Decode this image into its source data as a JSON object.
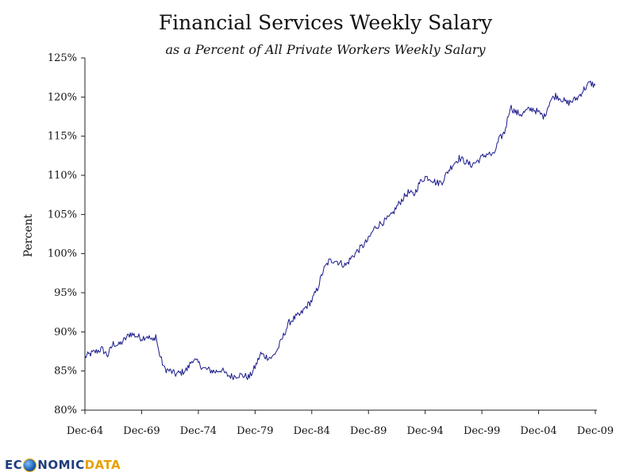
{
  "chart_data": {
    "type": "line",
    "title": "Financial Services Weekly Salary",
    "subtitle": "as a Percent of All Private Workers Weekly Salary",
    "ylabel": "Percent",
    "xlabel": "",
    "ylim": [
      80,
      125
    ],
    "yticks": [
      "80%",
      "85%",
      "90%",
      "95%",
      "100%",
      "105%",
      "110%",
      "115%",
      "120%",
      "125%"
    ],
    "xticks": [
      "Dec-64",
      "Dec-69",
      "Dec-74",
      "Dec-79",
      "Dec-84",
      "Dec-89",
      "Dec-94",
      "Dec-99",
      "Dec-04",
      "Dec-09"
    ],
    "xlim": [
      "1964-12",
      "2009-12"
    ],
    "line_color": "#1a1a8c",
    "grid": false,
    "legend": "none",
    "series": [
      {
        "x": [
          "1964-12",
          "1965-06",
          "1965-12",
          "1966-06",
          "1966-12",
          "1967-06",
          "1967-12",
          "1968-06",
          "1968-12",
          "1969-06",
          "1969-12",
          "1970-06",
          "1970-12",
          "1971-03",
          "1971-06",
          "1971-12",
          "1972-06",
          "1972-12",
          "1973-06",
          "1973-12",
          "1974-06",
          "1974-12",
          "1975-06",
          "1975-12",
          "1976-06",
          "1976-12",
          "1977-06",
          "1977-12",
          "1978-06",
          "1978-12",
          "1979-06",
          "1979-12",
          "1980-06",
          "1980-12",
          "1981-06",
          "1981-12",
          "1982-06",
          "1982-12",
          "1983-06",
          "1983-12",
          "1984-06",
          "1984-12",
          "1985-06",
          "1985-12",
          "1986-06",
          "1986-12",
          "1987-06",
          "1987-12",
          "1988-06",
          "1988-12",
          "1989-06",
          "1989-12",
          "1990-06",
          "1990-12",
          "1991-06",
          "1991-12",
          "1992-06",
          "1992-12",
          "1993-06",
          "1993-12",
          "1994-06",
          "1994-12",
          "1995-06",
          "1995-12",
          "1996-06",
          "1996-12",
          "1997-06",
          "1997-12",
          "1998-06",
          "1998-12",
          "1999-06",
          "1999-12",
          "2000-06",
          "2000-12",
          "2001-06",
          "2001-12",
          "2002-06",
          "2002-12",
          "2003-06",
          "2003-12",
          "2004-06",
          "2004-12",
          "2005-06",
          "2005-12",
          "2006-06",
          "2006-12",
          "2007-06",
          "2007-12",
          "2008-06",
          "2008-12",
          "2009-06",
          "2009-12"
        ],
        "y": [
          86.8,
          87.2,
          87.5,
          87.8,
          87.0,
          88.5,
          88.3,
          89.0,
          89.8,
          89.5,
          89.2,
          89.5,
          88.8,
          89.6,
          87.5,
          85.3,
          85.0,
          84.6,
          84.8,
          85.2,
          86.5,
          86.0,
          85.3,
          85.1,
          84.9,
          85.2,
          84.5,
          84.3,
          84.5,
          84.4,
          84.2,
          85.5,
          87.2,
          86.8,
          86.7,
          87.8,
          89.5,
          91.2,
          91.8,
          92.2,
          93.2,
          94.0,
          95.5,
          97.8,
          99.0,
          99.2,
          98.8,
          98.5,
          99.5,
          100.3,
          101.0,
          101.8,
          103.2,
          103.8,
          104.2,
          104.8,
          106.0,
          107.0,
          107.8,
          107.5,
          109.0,
          109.8,
          109.6,
          109.0,
          109.2,
          110.5,
          111.5,
          112.2,
          111.8,
          111.3,
          111.7,
          112.3,
          112.8,
          112.5,
          114.5,
          115.5,
          118.8,
          118.0,
          117.8,
          118.3,
          118.5,
          118.0,
          117.5,
          119.5,
          120.2,
          119.8,
          119.2,
          119.5,
          120.0,
          121.0,
          121.8,
          121.5
        ]
      }
    ]
  },
  "logo": {
    "ec": "EC",
    "rest": "NOMIC",
    "data": "DATA"
  }
}
